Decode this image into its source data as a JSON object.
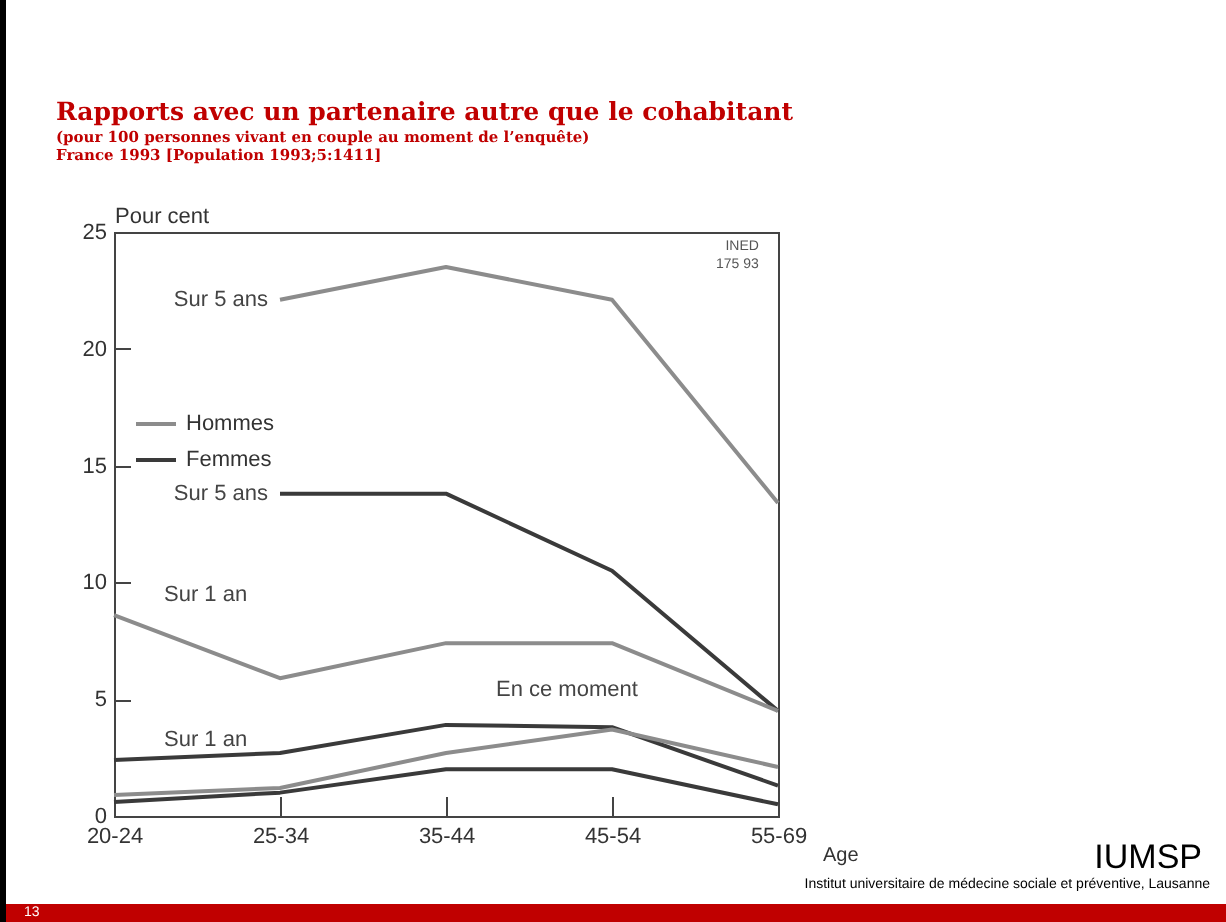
{
  "chart_data": {
    "type": "line",
    "title": "Rapports avec un partenaire autre que le cohabitant",
    "subtitle": "(pour 100 personnes vivant en couple au moment de l’enquête)\nFrance 1993 [Population 1993;5:1411]",
    "xlabel": "Age",
    "ylabel": "Pour cent",
    "categories": [
      "20-24",
      "25-34",
      "35-44",
      "45-54",
      "55-69"
    ],
    "series": [
      {
        "name": "Hommes",
        "color": "#8c8c8c",
        "values": [
          null,
          22.1,
          23.5,
          22.1,
          13.4
        ]
      },
      {
        "name": "Femmes",
        "color": "#3a3a3a",
        "values": [
          null,
          13.8,
          13.8,
          10.5,
          4.5
        ]
      },
      {
        "color": "#8c8c8c",
        "values": [
          8.6,
          5.9,
          7.4,
          7.4,
          4.5
        ]
      },
      {
        "color": "#3a3a3a",
        "values": [
          2.4,
          2.7,
          3.9,
          3.8,
          1.3
        ]
      },
      {
        "color": "#8c8c8c",
        "values": [
          0.9,
          1.2,
          2.7,
          3.7,
          2.1
        ]
      },
      {
        "color": "#3a3a3a",
        "values": [
          0.6,
          1.0,
          2.0,
          2.0,
          0.5
        ]
      }
    ],
    "ylim": [
      0,
      25
    ],
    "yticks": [
      0,
      5,
      10,
      15,
      20,
      25
    ],
    "grid": false,
    "legend": "left",
    "marker": "none",
    "line_style": "solid",
    "annotations": [
      {
        "text": "Sur 5 ans",
        "x": "25-34",
        "y": 22.1
      },
      {
        "text": "Sur 5 ans",
        "x": "25-34",
        "y": 13.8
      },
      {
        "text": "Sur 1 an",
        "x": "20-24",
        "y": 8.6
      },
      {
        "text": "Sur 1 an",
        "x": "20-24",
        "y": 2.4
      },
      "En ce moment",
      "INED\n175 93",
      "IUMSP",
      "Institut universitaire de médecine sociale et préventive, Lausanne",
      "13"
    ]
  }
}
